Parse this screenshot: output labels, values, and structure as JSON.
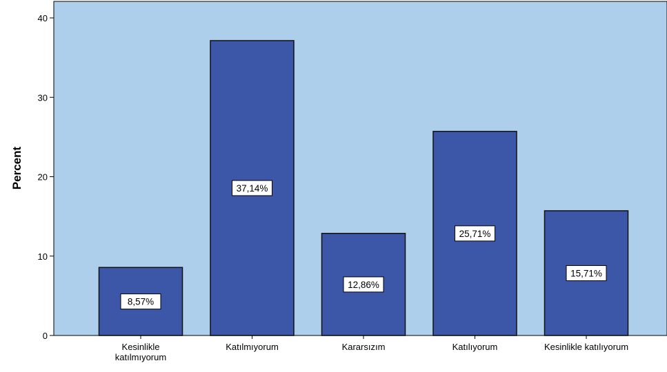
{
  "chart_data": {
    "type": "bar",
    "categories": [
      [
        "Kesinlikle",
        "katılmıyorum"
      ],
      [
        "Katılmıyorum"
      ],
      [
        "Kararsızım"
      ],
      [
        "Katılıyorum"
      ],
      [
        "Kesinlikle katılıyorum"
      ]
    ],
    "values": [
      8.57,
      37.14,
      12.86,
      25.71,
      15.71
    ],
    "data_labels": [
      "8,57%",
      "37,14%",
      "12,86%",
      "25,71%",
      "15,71%"
    ],
    "title": "",
    "xlabel": "",
    "ylabel": "Percent",
    "ylim": [
      0,
      40
    ],
    "yticks": [
      0,
      10,
      20,
      30,
      40
    ],
    "grid": false,
    "colors": {
      "plot_background": "#aecfec",
      "bar_fill": "#3c56a8",
      "bar_stroke": "#111111",
      "label_box": "#ffffff"
    }
  }
}
